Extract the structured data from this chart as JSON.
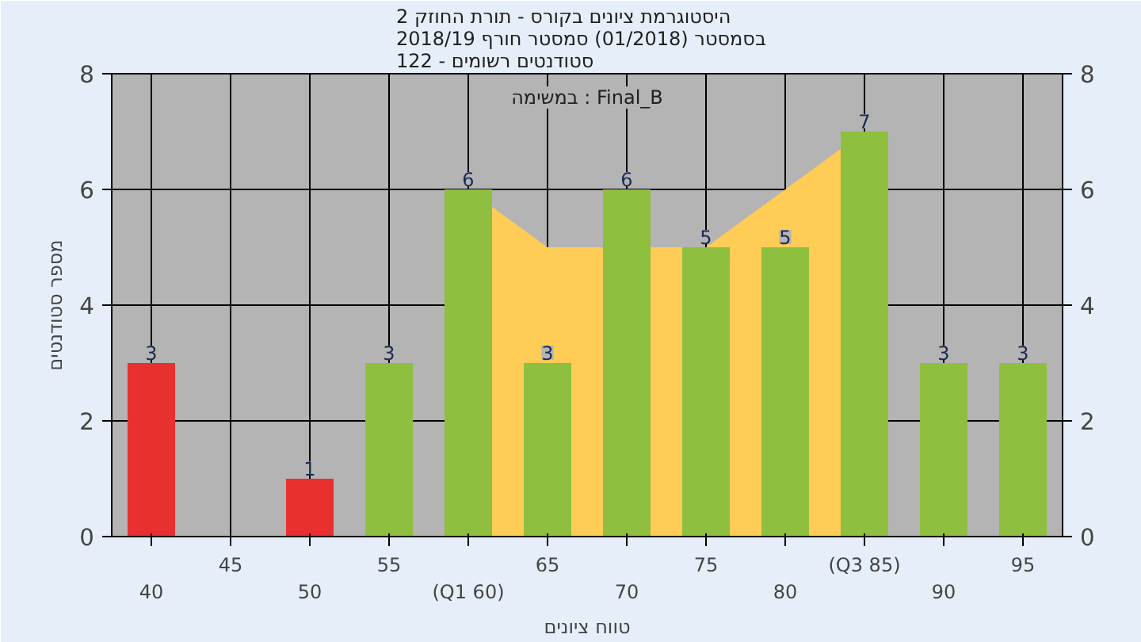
{
  "chart_data": {
    "type": "bar",
    "title": "היסטוגרמת ציונים בקורס - תורת החוזק 2\nבסמסטר  (01/2018)  סמסטר חורף 2018/19\nסטודנטים רשומים - 122",
    "annotations": [
      "במשימה : Final_B"
    ],
    "xlabel": "טווח ציונים",
    "ylabel": "מספר סטודנטים",
    "categories": [
      "40",
      "45",
      "50",
      "55",
      "(Q1 60)",
      "65",
      "70",
      "75",
      "80",
      "(Q3 85)",
      "90",
      "95"
    ],
    "series": [
      {
        "type": "area",
        "color": "#ffcc55",
        "values": [
          null,
          null,
          null,
          null,
          6,
          5,
          null,
          5,
          6,
          7,
          null,
          null
        ]
      },
      {
        "colors": [
          "#e83030",
          "#e83030",
          "#e83030",
          "#8fbf3f",
          "#8fbf3f",
          "#8fbf3f",
          "#8fbf3f",
          "#8fbf3f",
          "#8fbf3f",
          "#8fbf3f",
          "#8fbf3f",
          "#8fbf3f"
        ],
        "values": [
          3,
          0,
          1,
          3,
          6,
          3,
          6,
          5,
          5,
          7,
          3,
          3
        ],
        "value_labels": [
          "3",
          null,
          "1",
          "3",
          "6",
          "3",
          "6",
          "5",
          "5",
          "7",
          "3",
          "3"
        ]
      }
    ],
    "ylim": [
      0,
      8
    ],
    "yticks": [
      0,
      2,
      4,
      6,
      8
    ],
    "y2lim": [
      0,
      8
    ],
    "y2ticks": [
      0,
      2,
      4,
      6,
      8
    ],
    "grid": true
  }
}
